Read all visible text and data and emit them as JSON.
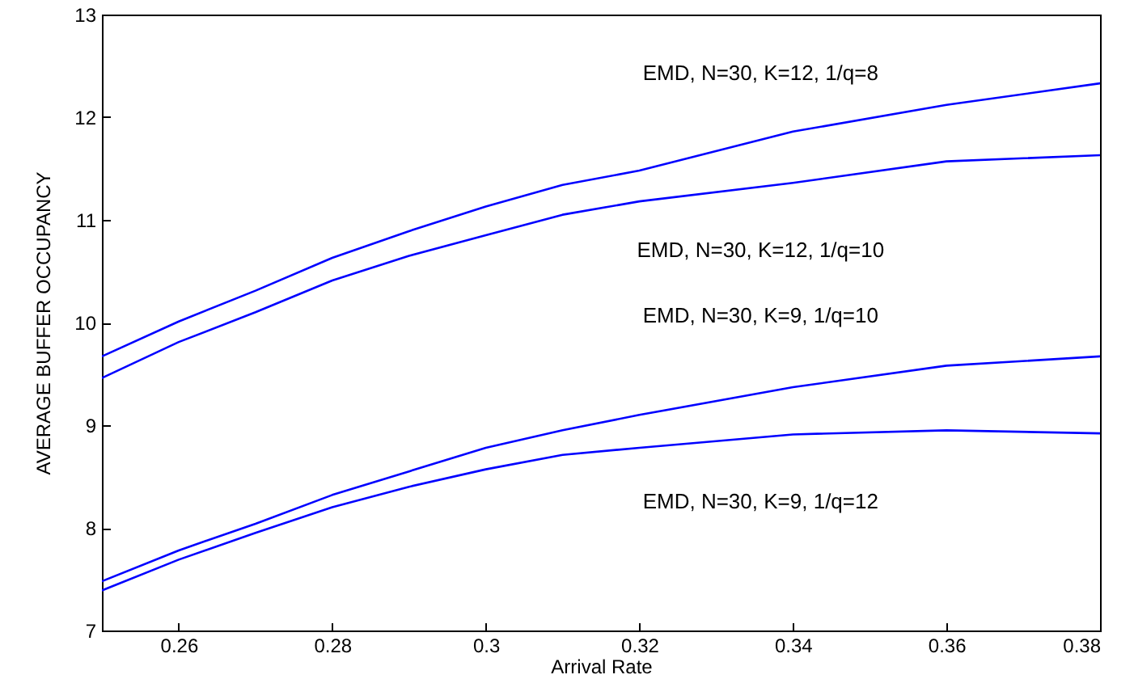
{
  "chart_data": {
    "type": "line",
    "xlabel": "Arrival Rate",
    "ylabel": "AVERAGE BUFFER OCCUPANCY",
    "x": [
      0.25,
      0.26,
      0.27,
      0.28,
      0.29,
      0.3,
      0.31,
      0.32,
      0.34,
      0.36,
      0.38
    ],
    "series": [
      {
        "name": "EMD, N=30, K=12, 1/q=8",
        "color": "#0000ff",
        "values": [
          9.67,
          10.01,
          10.31,
          10.63,
          10.89,
          11.13,
          11.34,
          11.48,
          11.86,
          12.12,
          12.33
        ]
      },
      {
        "name": "EMD, N=30, K=12, 1/q=10",
        "color": "#0000ff",
        "values": [
          9.46,
          9.81,
          10.1,
          10.41,
          10.65,
          10.85,
          11.05,
          11.18,
          11.36,
          11.57,
          11.63
        ]
      },
      {
        "name": "EMD, N=30, K=9, 1/q=10",
        "color": "#0000ff",
        "values": [
          7.48,
          7.78,
          8.04,
          8.32,
          8.55,
          8.78,
          8.95,
          9.1,
          9.37,
          9.58,
          9.67
        ]
      },
      {
        "name": "EMD, N=30, K=9, 1/q=12",
        "color": "#0000ff",
        "values": [
          7.39,
          7.69,
          7.95,
          8.2,
          8.4,
          8.57,
          8.71,
          8.78,
          8.91,
          8.95,
          8.92
        ]
      }
    ],
    "xlim": [
      0.25,
      0.38
    ],
    "xticks": [
      0.26,
      0.28,
      {
        "value": 0.3,
        "label": "0.3"
      },
      0.32,
      0.34,
      0.36,
      0.38
    ],
    "ylim": [
      7,
      13
    ],
    "yticks": [
      7,
      8,
      9,
      10,
      11,
      12,
      13
    ],
    "grid": false,
    "marker": "none",
    "line_style": "solid"
  }
}
